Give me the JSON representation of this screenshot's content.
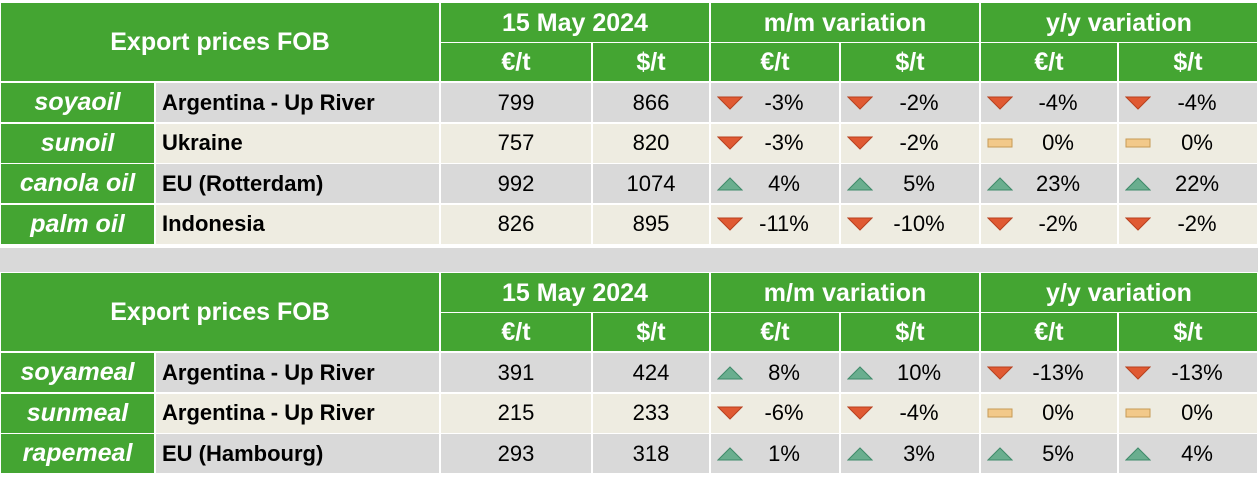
{
  "tables": [
    {
      "header": {
        "title": "Export prices FOB",
        "groups": [
          "15 May 2024",
          "m/m variation",
          "y/y variation"
        ],
        "units": [
          "€/t",
          "$/t",
          "€/t",
          "$/t",
          "€/t",
          "$/t"
        ]
      },
      "rows": [
        {
          "product": "soyaoil",
          "origin": "Argentina - Up River",
          "prices": [
            799,
            866
          ],
          "variations": [
            "-3%",
            "-2%",
            "-4%",
            "-4%"
          ]
        },
        {
          "product": "sunoil",
          "origin": "Ukraine",
          "prices": [
            757,
            820
          ],
          "variations": [
            "-3%",
            "-2%",
            "0%",
            "0%"
          ]
        },
        {
          "product": "canola oil",
          "origin": "EU (Rotterdam)",
          "prices": [
            992,
            1074
          ],
          "variations": [
            "4%",
            "5%",
            "23%",
            "22%"
          ]
        },
        {
          "product": "palm oil",
          "origin": "Indonesia",
          "prices": [
            826,
            895
          ],
          "variations": [
            "-11%",
            "-10%",
            "-2%",
            "-2%"
          ]
        }
      ]
    },
    {
      "header": {
        "title": "Export prices FOB",
        "groups": [
          "15 May 2024",
          "m/m variation",
          "y/y variation"
        ],
        "units": [
          "€/t",
          "$/t",
          "€/t",
          "$/t",
          "€/t",
          "$/t"
        ]
      },
      "rows": [
        {
          "product": "soyameal",
          "origin": "Argentina - Up River",
          "prices": [
            391,
            424
          ],
          "variations": [
            "8%",
            "10%",
            "-13%",
            "-13%"
          ]
        },
        {
          "product": "sunmeal",
          "origin": "Argentina - Up River",
          "prices": [
            215,
            233
          ],
          "variations": [
            "-6%",
            "-4%",
            "0%",
            "0%"
          ]
        },
        {
          "product": "rapemeal",
          "origin": "EU (Hambourg)",
          "prices": [
            293,
            318
          ],
          "variations": [
            "1%",
            "3%",
            "5%",
            "4%"
          ]
        }
      ]
    }
  ]
}
